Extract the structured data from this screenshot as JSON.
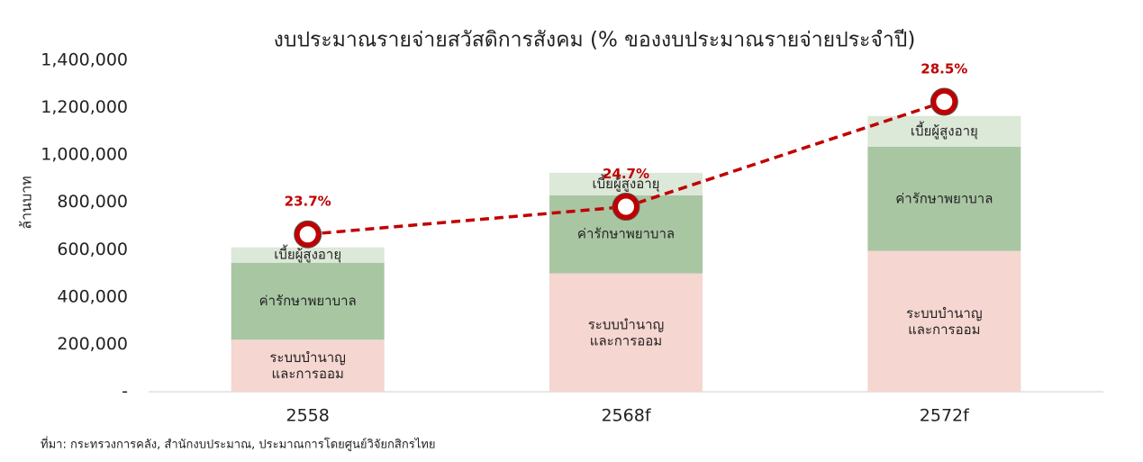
{
  "chart_data": {
    "type": "stacked-bar-line",
    "title": "งบประมาณรายจ่ายสวัสดิการสังคม (% ของงบประมาณรายจ่ายประจำปี)",
    "y_label": "ล้านบาท",
    "source": "ที่มา: กระทรวงการคลัง, สำนักงบประมาณ, ประมาณการโดยศูนย์วิจัยกสิกรไทย",
    "categories": [
      "2558",
      "2568f",
      "2572f"
    ],
    "ylim": [
      0,
      1400000
    ],
    "yticks": [
      {
        "value": 0,
        "label": "-"
      },
      {
        "value": 200000,
        "label": "200,000"
      },
      {
        "value": 400000,
        "label": "400,000"
      },
      {
        "value": 600000,
        "label": "600,000"
      },
      {
        "value": 800000,
        "label": "800,000"
      },
      {
        "value": 1000000,
        "label": "1,000,000"
      },
      {
        "value": 1200000,
        "label": "1,200,000"
      },
      {
        "value": 1400000,
        "label": "1,400,000"
      }
    ],
    "y2lim": [
      18,
      30
    ],
    "series": [
      {
        "name": "ระบบบำนาญ\nและการออม",
        "color": "#f5d6d0",
        "values": [
          220000,
          500000,
          595000
        ]
      },
      {
        "name": "ค่ารักษาพยาบาล",
        "color": "#a9c6a3",
        "values": [
          325000,
          330000,
          440000
        ]
      },
      {
        "name": "เบี้ยผู้สูงอายุ",
        "color": "#dce8d8",
        "values": [
          65000,
          95000,
          130000
        ]
      },
      {
        "name": null,
        "type": "line",
        "axis": "y2",
        "color": "#c00000",
        "values": [
          23.7,
          24.7,
          28.5
        ],
        "value_labels": [
          "23.7%",
          "24.7%",
          "28.5%"
        ]
      }
    ]
  }
}
